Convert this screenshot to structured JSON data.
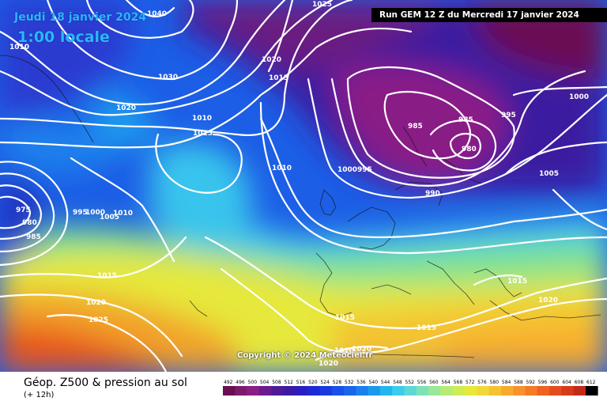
{
  "header": {
    "date_label": "Jeudi 18 janvier 2024",
    "time_label": "1:00 locale",
    "run_label": "Run GEM 12 Z du Mercredi 17 janvier 2024"
  },
  "footer": {
    "title": "Géop. Z500 & pression au sol",
    "subtitle": "(+ 12h)",
    "copyright": "Copyright © 2024 Meteociel.fr"
  },
  "legend": {
    "ticks": [
      "492",
      "496",
      "500",
      "504",
      "508",
      "512",
      "516",
      "520",
      "524",
      "528",
      "532",
      "536",
      "540",
      "544",
      "548",
      "552",
      "556",
      "560",
      "564",
      "568",
      "572",
      "576",
      "580",
      "584",
      "588",
      "592",
      "596",
      "600",
      "604",
      "608",
      "612"
    ],
    "colors": [
      "#6a0f52",
      "#7c1a6c",
      "#8a1e86",
      "#6b1a8f",
      "#4f1a96",
      "#3c1aa8",
      "#2a1ec0",
      "#1c2ad6",
      "#1a3ae0",
      "#1a50e8",
      "#1a66ea",
      "#1a80ec",
      "#1a9aee",
      "#22b6ee",
      "#3cccec",
      "#5ed8d6",
      "#7ee2b8",
      "#9ae898",
      "#b6ec74",
      "#d0ec52",
      "#e6e83a",
      "#f2d836",
      "#f6c232",
      "#f8aa2e",
      "#f8922a",
      "#f47a26",
      "#ee6222",
      "#e44c1e",
      "#d63a1a",
      "#c42a18",
      "#000000"
    ]
  },
  "isobar_labels": [
    {
      "text": "1040",
      "lx": 186,
      "ly": 20
    },
    {
      "text": "1025",
      "lx": 395,
      "ly": 8
    },
    {
      "text": "1010",
      "lx": 12,
      "ly": 62
    },
    {
      "text": "1020",
      "lx": 331,
      "ly": 78
    },
    {
      "text": "1015",
      "lx": 340,
      "ly": 101
    },
    {
      "text": "1030",
      "lx": 200,
      "ly": 100
    },
    {
      "text": "1020",
      "lx": 147,
      "ly": 139
    },
    {
      "text": "1010",
      "lx": 243,
      "ly": 152
    },
    {
      "text": "1015",
      "lx": 244,
      "ly": 171
    },
    {
      "text": "1000",
      "lx": 720,
      "ly": 125
    },
    {
      "text": "995",
      "lx": 634,
      "ly": 148
    },
    {
      "text": "985",
      "lx": 580,
      "ly": 154
    },
    {
      "text": "985",
      "lx": 516,
      "ly": 162
    },
    {
      "text": "980",
      "lx": 584,
      "ly": 191
    },
    {
      "text": "1005",
      "lx": 682,
      "ly": 222
    },
    {
      "text": "1010",
      "lx": 344,
      "ly": 215
    },
    {
      "text": "1000",
      "lx": 427,
      "ly": 217
    },
    {
      "text": "995",
      "lx": 452,
      "ly": 217
    },
    {
      "text": "990",
      "lx": 538,
      "ly": 247
    },
    {
      "text": "975",
      "lx": 20,
      "ly": 268
    },
    {
      "text": "980",
      "lx": 28,
      "ly": 284
    },
    {
      "text": "985",
      "lx": 33,
      "ly": 302
    },
    {
      "text": "995",
      "lx": 92,
      "ly": 271
    },
    {
      "text": "1000",
      "lx": 108,
      "ly": 271
    },
    {
      "text": "1005",
      "lx": 126,
      "ly": 277
    },
    {
      "text": "1010",
      "lx": 143,
      "ly": 272
    },
    {
      "text": "1015",
      "lx": 123,
      "ly": 351
    },
    {
      "text": "1020",
      "lx": 109,
      "ly": 385
    },
    {
      "text": "1025",
      "lx": 112,
      "ly": 407
    },
    {
      "text": "1015",
      "lx": 424,
      "ly": 404
    },
    {
      "text": "1015",
      "lx": 527,
      "ly": 417
    },
    {
      "text": "1015",
      "lx": 642,
      "ly": 358
    },
    {
      "text": "1020",
      "lx": 681,
      "ly": 382
    },
    {
      "text": "1020",
      "lx": 445,
      "ly": 444
    },
    {
      "text": "1020",
      "lx": 423,
      "ly": 446
    },
    {
      "text": "1020",
      "lx": 403,
      "ly": 462
    }
  ]
}
